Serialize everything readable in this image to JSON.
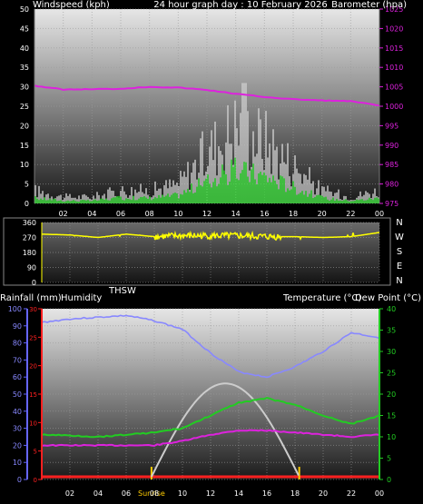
{
  "colors": {
    "wind": "#ffffff",
    "gust_fill": "#d0d0d0",
    "wind_green": "#22ee22",
    "barometer": "#dd22dd",
    "direction": "#ffff00",
    "rain": "#ff2020",
    "humidity": "#8888ff",
    "temperature": "#22cc22",
    "dewpoint": "#dd22dd",
    "solar": "#cccccc",
    "sun_marker": "#ffcc00"
  },
  "top": {
    "left_title": "Windspeed (kph)",
    "center_title": "24 hour graph day : 10 February 2026",
    "right_title": "Barometer (hpa)",
    "left_ticks": [
      "0",
      "5",
      "10",
      "15",
      "20",
      "25",
      "30",
      "35",
      "40",
      "45",
      "50"
    ],
    "right_ticks": [
      "975",
      "980",
      "985",
      "990",
      "995",
      "1000",
      "1005",
      "1010",
      "1015",
      "1020",
      "1025"
    ],
    "x_ticks": [
      "02",
      "04",
      "06",
      "08",
      "10",
      "12",
      "14",
      "16",
      "18",
      "20",
      "22",
      "00"
    ]
  },
  "middle": {
    "left_ticks": [
      "0",
      "90",
      "180",
      "270",
      "360"
    ],
    "compass": [
      "N",
      "W",
      "S",
      "E",
      "N"
    ],
    "left_label": "THSW"
  },
  "bottom": {
    "labels": {
      "rainfall": "Rainfall (mm)",
      "humidity": "Humidity",
      "temperature": "Temperature (°C)",
      "dewpoint": "Dew Point (°C)"
    },
    "humidity_ticks": [
      "0",
      "10",
      "20",
      "30",
      "40",
      "50",
      "60",
      "70",
      "80",
      "90",
      "100"
    ],
    "rain_ticks": [
      "0",
      "5",
      "10",
      "15",
      "20",
      "25",
      "30"
    ],
    "temp_ticks": [
      "0",
      "5",
      "10",
      "15",
      "20",
      "25",
      "30",
      "35",
      "40"
    ],
    "x_ticks": [
      "02",
      "04",
      "06",
      "08",
      "10",
      "12",
      "14",
      "16",
      "18",
      "20",
      "22",
      "00"
    ],
    "sunrise": "Sunrise",
    "sunset": "Sunset"
  },
  "chart_data": [
    {
      "type": "line",
      "title": "24 hour graph day : 10 February 2026",
      "x_hours": [
        0,
        2,
        4,
        6,
        8,
        10,
        12,
        14,
        16,
        18,
        20,
        22,
        24
      ],
      "series": [
        {
          "name": "Windspeed (kph)",
          "axis": "left",
          "values": [
            2,
            1,
            1,
            2,
            2,
            3,
            8,
            12,
            10,
            6,
            2,
            1,
            2
          ]
        },
        {
          "name": "Barometer (hpa)",
          "axis": "right",
          "values": [
            1005.3,
            1004.3,
            1004.4,
            1004.5,
            1005,
            1004.8,
            1004.2,
            1003.2,
            1002.4,
            1001.8,
            1001.5,
            1001.3,
            1000.2
          ]
        }
      ],
      "left_ylim": [
        0,
        50
      ],
      "right_ylim": [
        975,
        1025
      ],
      "gust_peak_kph": 31
    },
    {
      "type": "line",
      "x_hours": [
        0,
        2,
        4,
        6,
        8,
        10,
        12,
        14,
        16,
        18,
        20,
        22,
        24
      ],
      "series": [
        {
          "name": "Wind direction",
          "values": [
            290,
            285,
            270,
            290,
            275,
            280,
            280,
            280,
            275,
            275,
            270,
            275,
            300
          ]
        }
      ],
      "ylim": [
        0,
        360
      ]
    },
    {
      "type": "line",
      "x_hours": [
        0,
        2,
        4,
        6,
        8,
        10,
        12,
        14,
        16,
        18,
        20,
        22,
        24
      ],
      "series": [
        {
          "name": "Humidity",
          "axis": "humidity",
          "values": [
            92,
            94,
            95,
            96,
            93,
            88,
            74,
            63,
            60,
            66,
            75,
            86,
            83
          ]
        },
        {
          "name": "Temperature (°C)",
          "axis": "temp",
          "values": [
            10.5,
            10.3,
            10,
            10.5,
            11,
            12,
            15,
            18,
            19,
            17.5,
            15,
            13,
            15
          ]
        },
        {
          "name": "Dew Point (°C)",
          "axis": "temp",
          "values": [
            8,
            8,
            8,
            8,
            8,
            9,
            10.5,
            11.5,
            11.5,
            11,
            10.5,
            10,
            10.5
          ]
        },
        {
          "name": "Rainfall (mm)",
          "axis": "rain",
          "values": [
            0,
            0,
            0,
            0,
            0,
            0,
            0,
            0,
            0,
            0,
            0,
            0,
            0.1
          ]
        }
      ],
      "humidity_ylim": [
        0,
        100
      ],
      "rain_ylim": [
        0,
        30
      ],
      "temp_ylim": [
        0,
        40
      ],
      "sunrise_hour": 7.8,
      "sunset_hour": 18.3
    }
  ]
}
